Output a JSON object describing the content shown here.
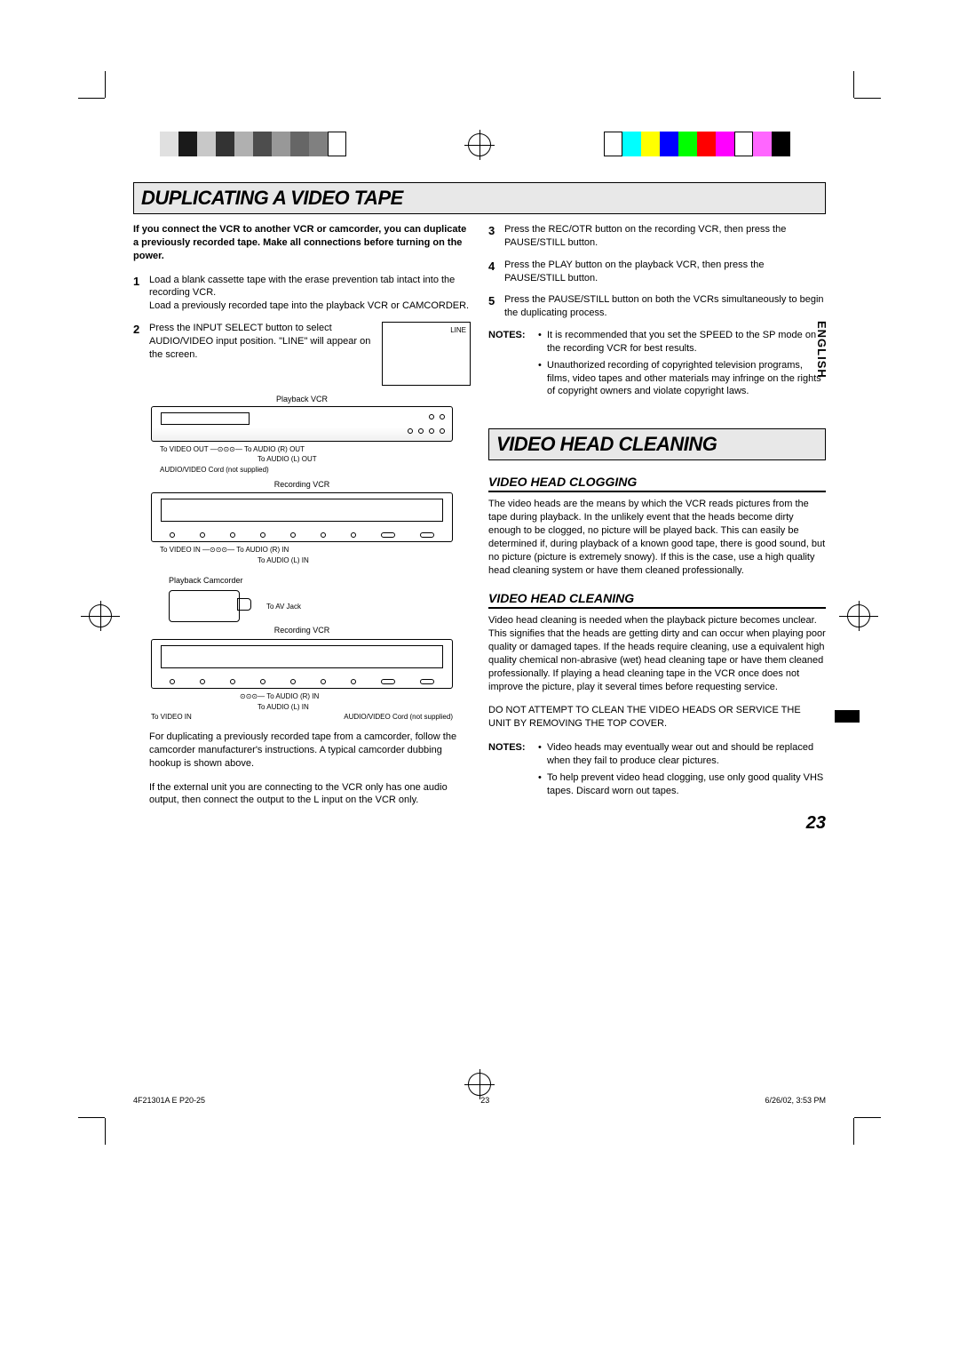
{
  "meta": {
    "page_number": "23",
    "document_id": "4F21301A E P20-25",
    "footer_page": "23",
    "timestamp": "6/26/02, 3:53 PM",
    "language_tab": "ENGLISH"
  },
  "color_bars": {
    "left": [
      "#e0e0e0",
      "#1a1a1a",
      "#c8c8c8",
      "#333333",
      "#b0b0b0",
      "#4d4d4d",
      "#989898",
      "#666666",
      "#808080",
      "#ffffff"
    ],
    "right": [
      "#ffffff",
      "#00ffff",
      "#ffff00",
      "#0000ff",
      "#00ff00",
      "#ff0000",
      "#ff00ff",
      "#ffffff",
      "#ff66ff",
      "#000000"
    ]
  },
  "section1": {
    "title": "DUPLICATING A VIDEO TAPE",
    "intro": "If you connect the VCR to another VCR or camcorder, you can duplicate a previously recorded tape. Make all connections before turning on the power.",
    "steps_left": [
      {
        "n": "1",
        "t": "Load a blank cassette tape with the erase prevention tab intact into the recording VCR.\nLoad a previously recorded tape into the playback VCR or CAMCORDER."
      },
      {
        "n": "2",
        "t": "Press the INPUT SELECT button to select AUDIO/VIDEO input position. \"LINE\" will appear on the screen."
      }
    ],
    "line_box": "LINE",
    "diagram": {
      "playback_vcr": "Playback VCR",
      "video_out": "To VIDEO OUT",
      "audio_r_out": "To AUDIO (R) OUT",
      "audio_l_out": "To AUDIO (L) OUT",
      "cord": "AUDIO/VIDEO Cord (not supplied)",
      "recording_vcr": "Recording VCR",
      "video_in": "To VIDEO IN",
      "audio_r_in": "To AUDIO (R) IN",
      "audio_l_in": "To AUDIO (L) IN",
      "playback_camcorder": "Playback Camcorder",
      "av_jack": "To AV Jack",
      "cord2": "AUDIO/VIDEO Cord",
      "not_supplied": "(not supplied)"
    },
    "sub_paras": [
      "For duplicating a previously recorded tape from a camcorder, follow the camcorder manufacturer's instructions. A typical camcorder dubbing hookup is shown above.",
      "If the external unit you are connecting to the VCR only has one audio output, then connect the output to the L input on the VCR only."
    ],
    "steps_right": [
      {
        "n": "3",
        "t": "Press the REC/OTR button on the recording VCR, then press the PAUSE/STILL button."
      },
      {
        "n": "4",
        "t": "Press the PLAY button on the playback VCR, then press the PAUSE/STILL button."
      },
      {
        "n": "5",
        "t": "Press the PAUSE/STILL button on both the VCRs simultaneously to begin the duplicating process."
      }
    ],
    "notes_label": "NOTES:",
    "notes": [
      "It is recommended that you set the SPEED to the SP mode on the recording VCR for best results.",
      "Unauthorized recording of copyrighted television programs, films, video tapes and other materials may infringe on the rights of copyright owners and violate copyright laws."
    ]
  },
  "section2": {
    "title": "VIDEO HEAD CLEANING",
    "h1": "VIDEO HEAD CLOGGING",
    "p1": "The video heads are the means by which the VCR reads pictures from the tape during playback. In the unlikely event that the heads become dirty enough to be clogged, no picture will be played back. This can easily be determined if, during playback of a known good tape, there is good sound, but no picture (picture is extremely snowy). If this is the case, use a high quality head cleaning system or have them cleaned professionally.",
    "h2": "VIDEO HEAD CLEANING",
    "p2": "Video head cleaning is needed when the playback picture becomes unclear. This signifies that the heads are getting dirty and can occur when playing poor quality or damaged tapes. If the heads require cleaning, use a equivalent high quality chemical non-abrasive (wet) head cleaning tape or have them cleaned professionally. If playing a head cleaning tape in the VCR once does not improve the picture, play it several times before requesting service.",
    "warning": "DO NOT ATTEMPT TO CLEAN THE VIDEO HEADS OR SERVICE THE UNIT BY REMOVING THE TOP COVER.",
    "notes_label": "NOTES:",
    "notes": [
      "Video heads may eventually wear out and should be replaced when they fail to produce clear pictures.",
      "To help prevent video head clogging, use only good quality VHS tapes. Discard worn out tapes."
    ]
  }
}
